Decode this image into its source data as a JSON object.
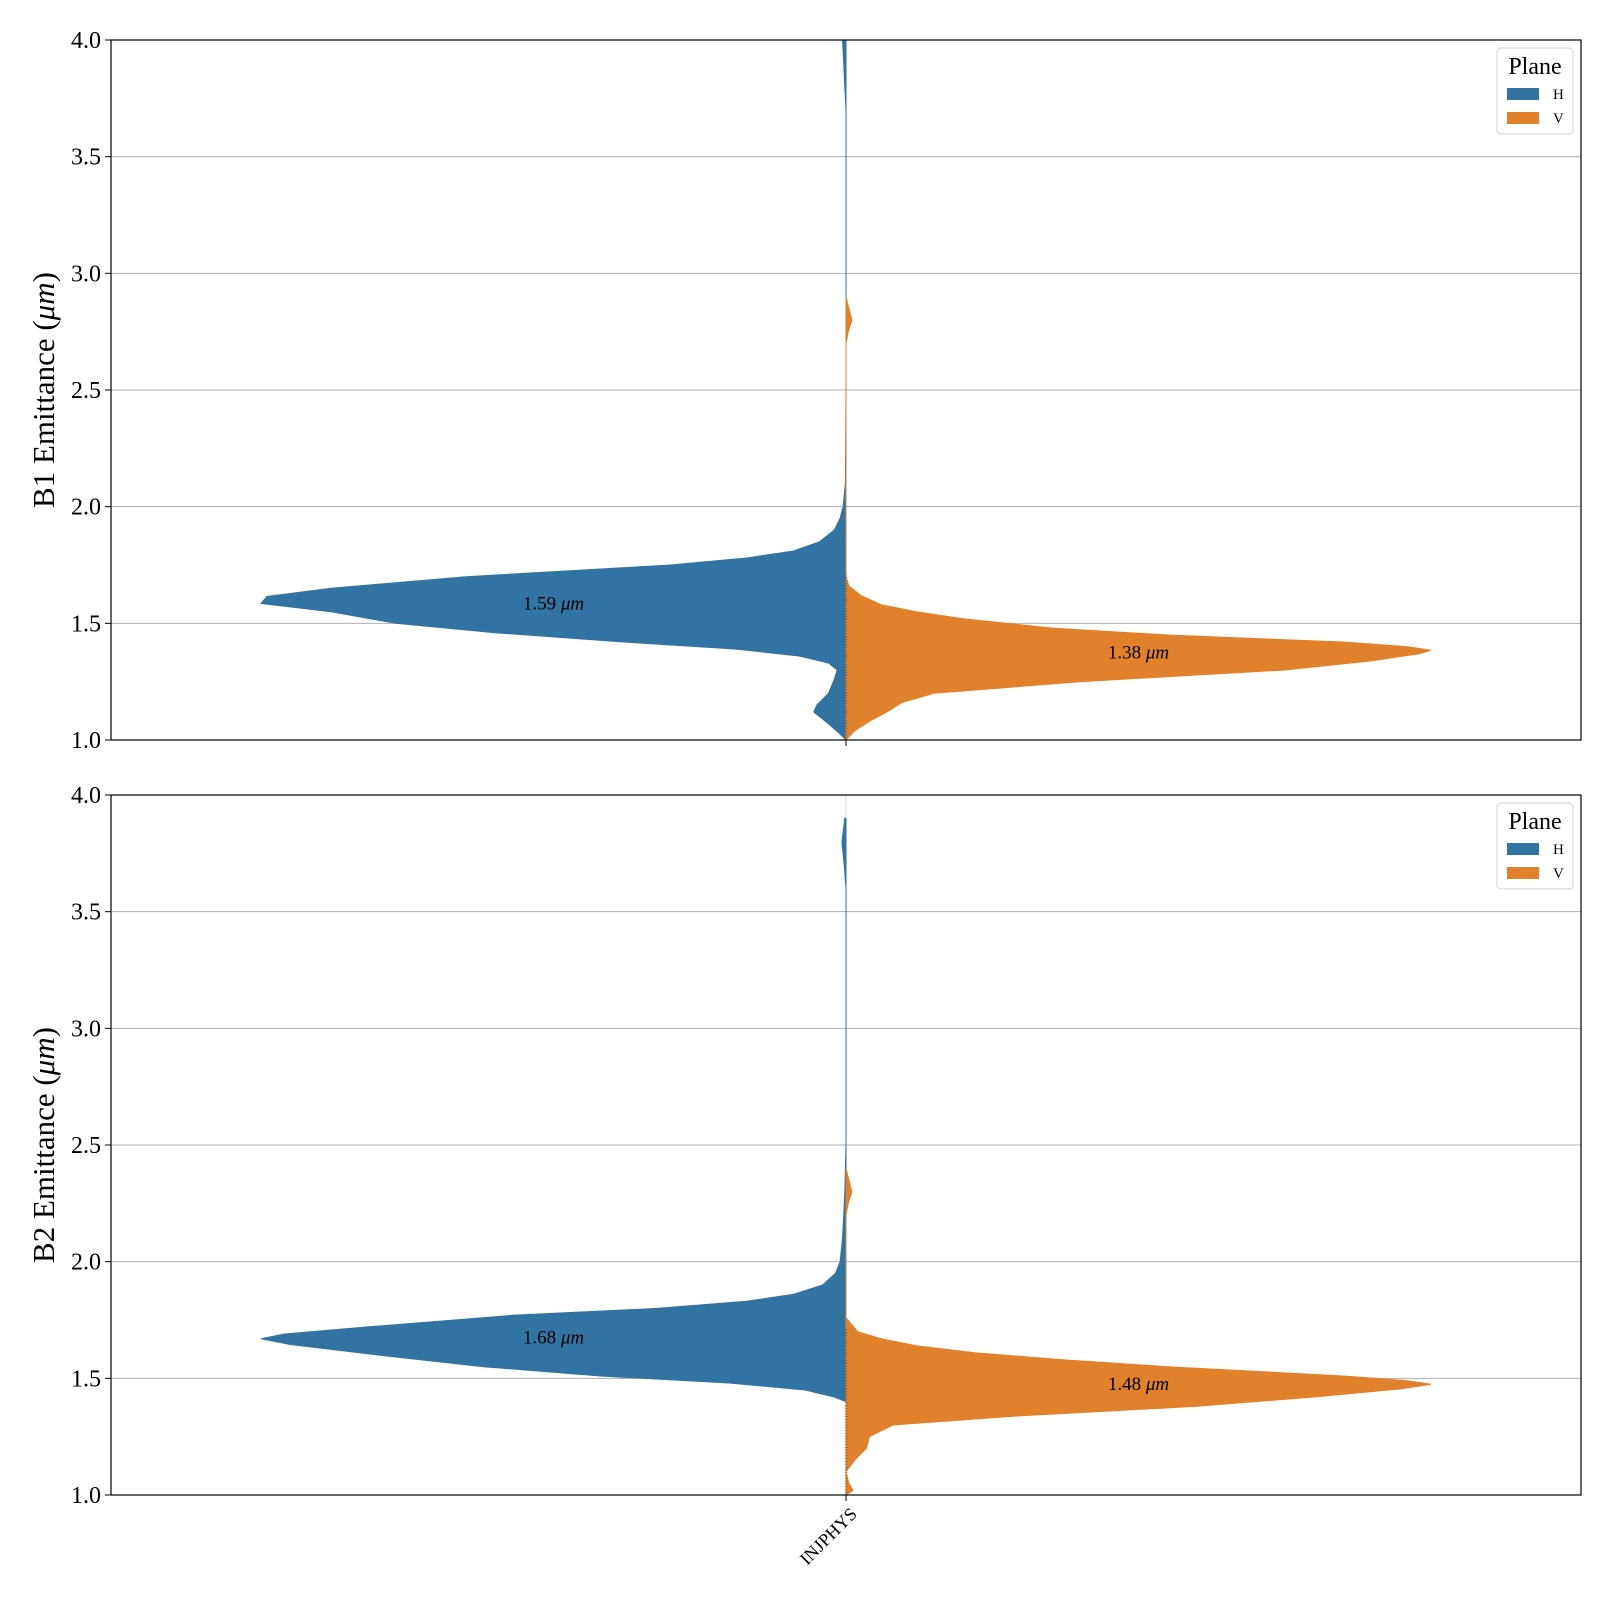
{
  "chart_data": [
    {
      "type": "violin",
      "ylabel_text": "B1 Emittance (",
      "ylabel_unit": "μm",
      "ylabel_close": ")",
      "ylim": [
        1.0,
        4.0
      ],
      "yticks": [
        "1.0",
        "1.5",
        "2.0",
        "2.5",
        "3.0",
        "3.5",
        "4.0"
      ],
      "categories": [
        "INJPHYS"
      ],
      "grid": true,
      "legend": {
        "title": "Plane",
        "placement": "top-right",
        "entries": [
          "H",
          "V"
        ]
      },
      "series": [
        {
          "name": "H",
          "color": "#3274a1",
          "median_label_value": "1.59",
          "median_label_unit": "μm",
          "median": 1.59,
          "density_profile": [
            [
              1.0,
              0.0
            ],
            [
              1.03,
              0.012
            ],
            [
              1.08,
              0.035
            ],
            [
              1.12,
              0.055
            ],
            [
              1.15,
              0.05
            ],
            [
              1.2,
              0.03
            ],
            [
              1.26,
              0.02
            ],
            [
              1.3,
              0.015
            ],
            [
              1.33,
              0.03
            ],
            [
              1.36,
              0.08
            ],
            [
              1.39,
              0.19
            ],
            [
              1.42,
              0.38
            ],
            [
              1.46,
              0.6
            ],
            [
              1.5,
              0.77
            ],
            [
              1.55,
              0.88
            ],
            [
              1.585,
              1.0
            ],
            [
              1.615,
              0.99
            ],
            [
              1.65,
              0.88
            ],
            [
              1.7,
              0.65
            ],
            [
              1.75,
              0.3
            ],
            [
              1.78,
              0.17
            ],
            [
              1.81,
              0.09
            ],
            [
              1.85,
              0.045
            ],
            [
              1.9,
              0.02
            ],
            [
              1.95,
              0.01
            ],
            [
              2.0,
              0.005
            ],
            [
              2.1,
              0.001
            ],
            [
              2.5,
              0.0
            ],
            [
              3.7,
              0.0
            ],
            [
              3.8,
              0.002
            ],
            [
              3.9,
              0.004
            ],
            [
              4.0,
              0.006
            ]
          ]
        },
        {
          "name": "V",
          "color": "#e1812c",
          "median_label_value": "1.38",
          "median_label_unit": "μm",
          "median": 1.38,
          "density_profile": [
            [
              1.0,
              0.0
            ],
            [
              1.04,
              0.015
            ],
            [
              1.08,
              0.04
            ],
            [
              1.12,
              0.07
            ],
            [
              1.16,
              0.095
            ],
            [
              1.2,
              0.15
            ],
            [
              1.25,
              0.4
            ],
            [
              1.3,
              0.75
            ],
            [
              1.34,
              0.9
            ],
            [
              1.37,
              0.98
            ],
            [
              1.385,
              1.0
            ],
            [
              1.4,
              0.96
            ],
            [
              1.42,
              0.85
            ],
            [
              1.45,
              0.55
            ],
            [
              1.48,
              0.35
            ],
            [
              1.52,
              0.2
            ],
            [
              1.55,
              0.12
            ],
            [
              1.58,
              0.06
            ],
            [
              1.62,
              0.025
            ],
            [
              1.66,
              0.005
            ],
            [
              1.7,
              0.0
            ],
            [
              2.7,
              0.0
            ],
            [
              2.75,
              0.004
            ],
            [
              2.8,
              0.01
            ],
            [
              2.85,
              0.005
            ],
            [
              2.9,
              0.0
            ]
          ]
        }
      ]
    },
    {
      "type": "violin",
      "ylabel_text": "B2 Emittance (",
      "ylabel_unit": "μm",
      "ylabel_close": ")",
      "ylim": [
        1.0,
        4.0
      ],
      "yticks": [
        "1.0",
        "1.5",
        "2.0",
        "2.5",
        "3.0",
        "3.5",
        "4.0"
      ],
      "categories": [
        "INJPHYS"
      ],
      "grid": true,
      "legend": {
        "title": "Plane",
        "placement": "top-right",
        "entries": [
          "H",
          "V"
        ]
      },
      "series": [
        {
          "name": "H",
          "color": "#3274a1",
          "median_label_value": "1.68",
          "median_label_unit": "μm",
          "median": 1.68,
          "density_profile": [
            [
              1.4,
              0.0
            ],
            [
              1.42,
              0.02
            ],
            [
              1.45,
              0.07
            ],
            [
              1.48,
              0.2
            ],
            [
              1.51,
              0.42
            ],
            [
              1.55,
              0.62
            ],
            [
              1.6,
              0.8
            ],
            [
              1.645,
              0.95
            ],
            [
              1.67,
              1.0
            ],
            [
              1.69,
              0.96
            ],
            [
              1.72,
              0.82
            ],
            [
              1.77,
              0.57
            ],
            [
              1.8,
              0.32
            ],
            [
              1.83,
              0.17
            ],
            [
              1.86,
              0.09
            ],
            [
              1.9,
              0.04
            ],
            [
              1.95,
              0.018
            ],
            [
              2.0,
              0.01
            ],
            [
              2.1,
              0.006
            ],
            [
              2.2,
              0.004
            ],
            [
              2.3,
              0.002
            ],
            [
              2.5,
              0.0
            ],
            [
              3.6,
              0.0
            ],
            [
              3.7,
              0.003
            ],
            [
              3.8,
              0.007
            ],
            [
              3.9,
              0.002
            ]
          ]
        },
        {
          "name": "V",
          "color": "#e1812c",
          "median_label_value": "1.48",
          "median_label_unit": "μm",
          "median": 1.48,
          "density_profile": [
            [
              1.0,
              0.0
            ],
            [
              1.02,
              0.012
            ],
            [
              1.05,
              0.005
            ],
            [
              1.1,
              0.0
            ],
            [
              1.15,
              0.015
            ],
            [
              1.2,
              0.035
            ],
            [
              1.25,
              0.04
            ],
            [
              1.3,
              0.08
            ],
            [
              1.34,
              0.3
            ],
            [
              1.38,
              0.6
            ],
            [
              1.42,
              0.8
            ],
            [
              1.455,
              0.95
            ],
            [
              1.475,
              1.0
            ],
            [
              1.49,
              0.96
            ],
            [
              1.51,
              0.85
            ],
            [
              1.55,
              0.55
            ],
            [
              1.58,
              0.37
            ],
            [
              1.61,
              0.22
            ],
            [
              1.64,
              0.12
            ],
            [
              1.67,
              0.06
            ],
            [
              1.7,
              0.02
            ],
            [
              1.73,
              0.01
            ],
            [
              1.76,
              0.0
            ],
            [
              2.2,
              0.0
            ],
            [
              2.25,
              0.004
            ],
            [
              2.3,
              0.01
            ],
            [
              2.35,
              0.005
            ],
            [
              2.4,
              0.0
            ]
          ]
        }
      ]
    }
  ]
}
